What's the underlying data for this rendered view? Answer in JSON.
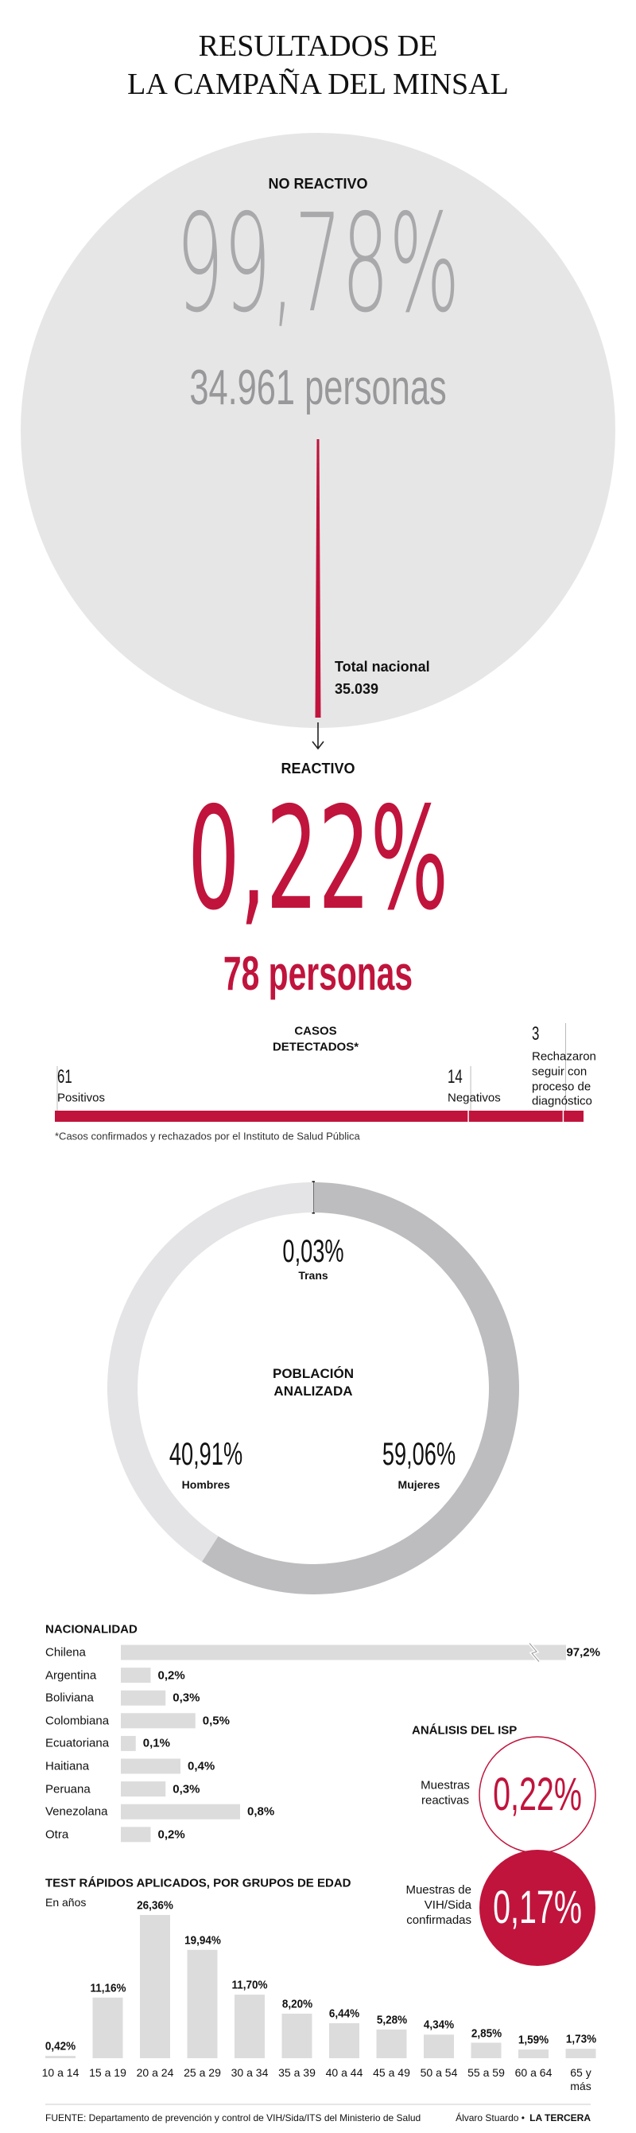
{
  "title_lines": [
    "RESULTADOS DE",
    "LA CAMPAÑA DEL  MINSAL"
  ],
  "no_reactivo": {
    "label": "NO REACTIVO",
    "percent": "99,78%",
    "people": "34.961 personas"
  },
  "total": {
    "label": "Total nacional",
    "value": "35.039"
  },
  "reactivo": {
    "label": "REACTIVO",
    "percent": "0,22%",
    "people": "78 personas"
  },
  "chart_data": [
    {
      "type": "stacked-bar",
      "title": "CASOS DETECTADOS*",
      "series": [
        {
          "name": "Positivos",
          "color": "#c0143c",
          "values": [
            61
          ]
        },
        {
          "name": "Negativos",
          "color": "#c0143c",
          "values": [
            14
          ]
        },
        {
          "name": "Rechazaron seguir con proceso de diagnóstico",
          "color": "#c0143c",
          "values": [
            3
          ]
        }
      ],
      "note": "*Casos confirmados y rechazados por el Instituto de Salud Pública"
    },
    {
      "type": "donut",
      "title": "POBLACIÓN ANALIZADA",
      "categories": [
        "Trans",
        "Mujeres",
        "Hombres"
      ],
      "values": [
        0.03,
        59.06,
        40.91
      ],
      "value_labels": [
        "0,03%",
        "59,06%",
        "40,91%"
      ],
      "colors": [
        "#111111",
        "#bdbdc0",
        "#e4e4e6"
      ]
    },
    {
      "type": "hbar",
      "title": "NACIONALIDAD",
      "categories": [
        "Chilena",
        "Argentina",
        "Boliviana",
        "Colombiana",
        "Ecuatoriana",
        "Haitiana",
        "Peruana",
        "Venezolana",
        "Otra"
      ],
      "values": [
        97.2,
        0.2,
        0.3,
        0.5,
        0.1,
        0.4,
        0.3,
        0.8,
        0.2
      ],
      "value_labels": [
        "97,2%",
        "0,2%",
        "0,3%",
        "0,5%",
        "0,1%",
        "0,4%",
        "0,3%",
        "0,8%",
        "0,2%"
      ],
      "color": "#dcdcdc"
    },
    {
      "type": "bar",
      "title": "TEST RÁPIDOS APLICADOS, POR GRUPOS DE EDAD",
      "subtitle": "En años",
      "categories": [
        "10 a 14",
        "15 a 19",
        "20 a 24",
        "25 a 29",
        "30 a 34",
        "35 a 39",
        "40 a 44",
        "45 a 49",
        "50 a 54",
        "55 a 59",
        "60 a 64",
        "65 y más"
      ],
      "values": [
        0.42,
        11.16,
        26.36,
        19.94,
        11.7,
        8.2,
        6.44,
        5.28,
        4.34,
        2.85,
        1.59,
        1.73
      ],
      "value_labels": [
        "0,42%",
        "11,16%",
        "26,36%",
        "19,94%",
        "11,70%",
        "8,20%",
        "6,44%",
        "5,28%",
        "4,34%",
        "2,85%",
        "1,59%",
        "1,73%"
      ],
      "color": "#dcdcdc"
    }
  ],
  "isp": {
    "title": "ANÁLISIS DEL ISP",
    "items": [
      {
        "label": "Muestras reactivas",
        "value": "0,22%"
      },
      {
        "label": "Muestras de VIH/Sida confirmadas",
        "value": "0,17%"
      }
    ]
  },
  "footer": {
    "source": "FUENTE: Departamento de prevención y control de VIH/Sida/ITS del Ministerio de Salud",
    "author": "Álvaro Stuardo •",
    "outlet": "LA TERCERA"
  }
}
